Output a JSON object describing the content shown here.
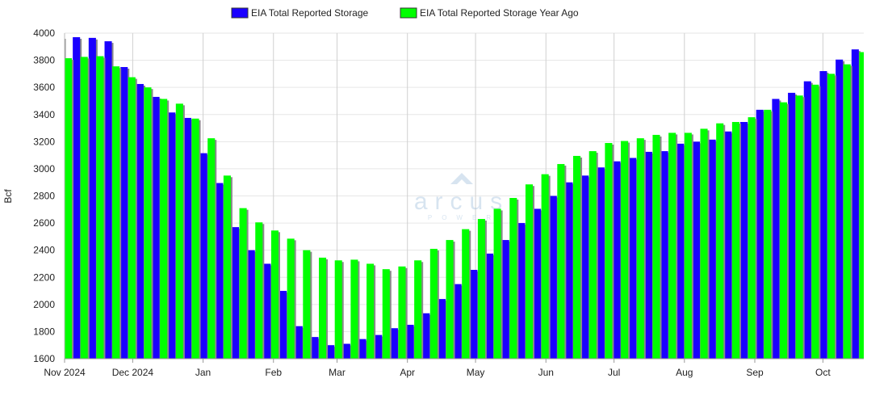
{
  "chart_data": {
    "type": "bar",
    "title": "",
    "xlabel": "",
    "ylabel": "Bcf",
    "ylim": [
      1600,
      4000
    ],
    "yticks": [
      1600,
      1800,
      2000,
      2200,
      2400,
      2600,
      2800,
      3000,
      3200,
      3400,
      3600,
      3800,
      4000
    ],
    "xlim": [
      "2024-11-01",
      "2025-10-19"
    ],
    "xticks": [
      {
        "date": "2024-11-01",
        "label": "Nov 2024"
      },
      {
        "date": "2024-12-01",
        "label": "Dec 2024"
      },
      {
        "date": "2025-01-01",
        "label": "Jan"
      },
      {
        "date": "2025-02-01",
        "label": "Feb"
      },
      {
        "date": "2025-03-01",
        "label": "Mar"
      },
      {
        "date": "2025-04-01",
        "label": "Apr"
      },
      {
        "date": "2025-05-01",
        "label": "May"
      },
      {
        "date": "2025-06-01",
        "label": "Jun"
      },
      {
        "date": "2025-07-01",
        "label": "Jul"
      },
      {
        "date": "2025-08-01",
        "label": "Aug"
      },
      {
        "date": "2025-09-01",
        "label": "Sep"
      },
      {
        "date": "2025-10-01",
        "label": "Oct"
      }
    ],
    "grid": true,
    "legend_position": "top-center",
    "first_week": "2024-11-01",
    "week_step_days": 7,
    "series": [
      {
        "name": "EIA Total Reported Storage",
        "color": "#1a00ff",
        "values": [
          3970,
          3970,
          3965,
          3940,
          3750,
          3625,
          3530,
          3415,
          3375,
          3115,
          2895,
          2570,
          2400,
          2300,
          2100,
          1840,
          1760,
          1700,
          1710,
          1745,
          1775,
          1825,
          1850,
          1935,
          2040,
          2150,
          2255,
          2375,
          2475,
          2600,
          2705,
          2800,
          2900,
          2950,
          3010,
          3055,
          3080,
          3125,
          3130,
          3185,
          3200,
          3215,
          3275,
          3345,
          3435,
          3515,
          3560,
          3645,
          3720,
          3805,
          3880
        ]
      },
      {
        "name": "EIA Total Reported Storage Year Ago",
        "color": "#00ff00",
        "values": [
          3815,
          3825,
          3830,
          3755,
          3675,
          3600,
          3515,
          3480,
          3370,
          3225,
          2950,
          2710,
          2605,
          2545,
          2485,
          2400,
          2345,
          2325,
          2330,
          2300,
          2260,
          2280,
          2325,
          2410,
          2475,
          2555,
          2630,
          2705,
          2785,
          2885,
          2960,
          3035,
          3095,
          3130,
          3190,
          3205,
          3225,
          3250,
          3265,
          3265,
          3295,
          3335,
          3345,
          3380,
          3435,
          3490,
          3540,
          3620,
          3700,
          3770,
          3860
        ]
      }
    ]
  },
  "watermark": {
    "brand": "arcus",
    "sub": "POWER"
  }
}
